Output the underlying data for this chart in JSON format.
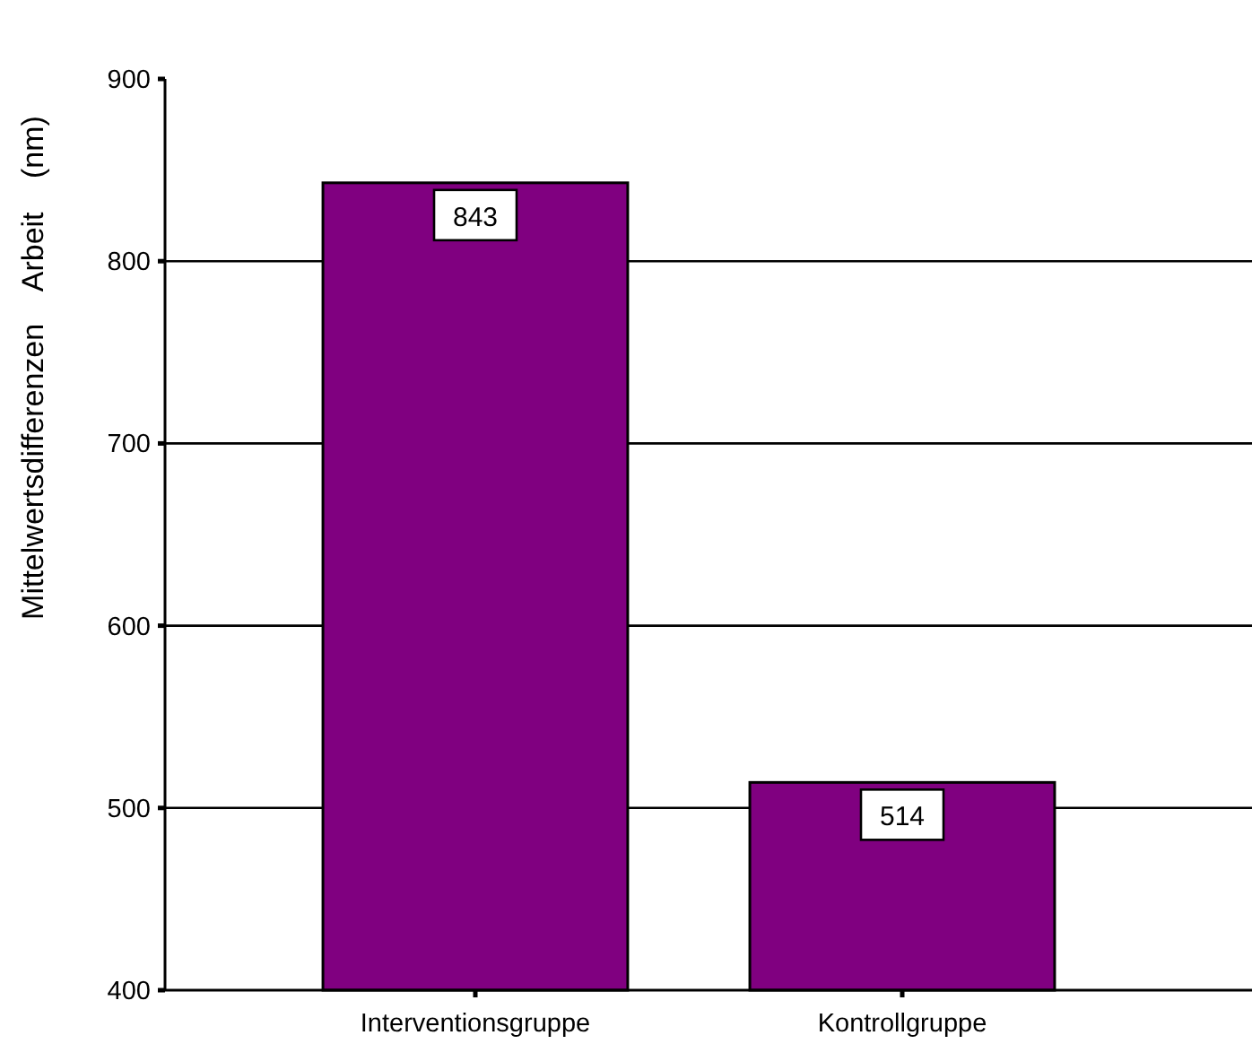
{
  "chart_data": {
    "type": "bar",
    "ylabel": "Mittelwertsdifferenzen Arbeit (nm)",
    "categories": [
      "Interventionsgruppe",
      "Kontrollgruppe"
    ],
    "series": [
      {
        "color": "#800080",
        "values": [
          843,
          514
        ]
      }
    ],
    "ylim": [
      400,
      900
    ],
    "yticks": [
      400,
      500,
      600,
      700,
      800,
      900
    ],
    "grid": "y",
    "data_labels": true
  }
}
